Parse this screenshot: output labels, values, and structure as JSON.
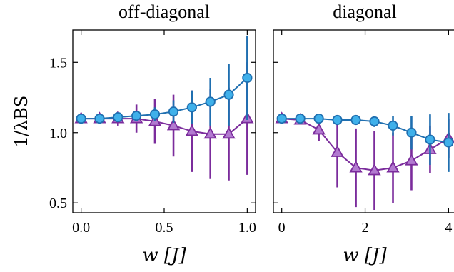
{
  "colors": {
    "series_circle_line": "#1f6fb0",
    "series_circle_fill": "#3fb0ea",
    "series_triangle_line": "#7b2c9c",
    "series_triangle_fill": "#b27ad0"
  },
  "ylabel": "1/λBS",
  "chart_data": [
    {
      "type": "line",
      "title": "off-diagonal",
      "xlabel": "w [J]",
      "ylabel": "1/λBS",
      "xlim": [
        -0.05,
        1.05
      ],
      "ylim": [
        0.43,
        1.73
      ],
      "xticks": [
        "0.0",
        "0.5",
        "1.0"
      ],
      "xtick_values": [
        0.0,
        0.5,
        1.0
      ],
      "yticks": [
        "0.5",
        "1.0",
        "1.5"
      ],
      "ytick_values": [
        0.5,
        1.0,
        1.5
      ],
      "series": [
        {
          "marker": "triangle",
          "x": [
            0.0,
            0.111,
            0.222,
            0.333,
            0.444,
            0.556,
            0.667,
            0.778,
            0.889,
            1.0
          ],
          "y": [
            1.1,
            1.1,
            1.1,
            1.1,
            1.08,
            1.05,
            1.01,
            0.99,
            0.99,
            1.1
          ],
          "err": [
            0.0,
            0.02,
            0.05,
            0.1,
            0.16,
            0.22,
            0.29,
            0.32,
            0.33,
            0.4
          ]
        },
        {
          "marker": "circle",
          "x": [
            0.0,
            0.111,
            0.222,
            0.333,
            0.444,
            0.556,
            0.667,
            0.778,
            0.889,
            1.0
          ],
          "y": [
            1.1,
            1.1,
            1.11,
            1.12,
            1.13,
            1.15,
            1.18,
            1.22,
            1.27,
            1.39
          ],
          "err": [
            0.0,
            0.01,
            0.02,
            0.03,
            0.05,
            0.08,
            0.12,
            0.17,
            0.22,
            0.3
          ]
        }
      ]
    },
    {
      "type": "line",
      "title": "diagonal",
      "xlabel": "w [J]",
      "ylabel": "",
      "xlim": [
        -0.2,
        4.25
      ],
      "ylim": [
        0.43,
        1.73
      ],
      "xticks": [
        "0",
        "2",
        "4"
      ],
      "xtick_values": [
        0,
        2,
        4
      ],
      "yticks": [],
      "ytick_values": [
        0.5,
        1.0,
        1.5
      ],
      "series": [
        {
          "marker": "triangle",
          "x": [
            0.0,
            0.444,
            0.889,
            1.333,
            1.778,
            2.222,
            2.667,
            3.111,
            3.556,
            4.0
          ],
          "y": [
            1.1,
            1.09,
            1.02,
            0.86,
            0.75,
            0.73,
            0.75,
            0.8,
            0.88,
            0.96
          ],
          "err": [
            0.0,
            0.02,
            0.08,
            0.25,
            0.28,
            0.28,
            0.25,
            0.21,
            0.17,
            0.14
          ]
        },
        {
          "marker": "circle",
          "x": [
            0.0,
            0.444,
            0.889,
            1.333,
            1.778,
            2.222,
            2.667,
            3.111,
            3.556,
            4.0
          ],
          "y": [
            1.1,
            1.1,
            1.1,
            1.09,
            1.09,
            1.08,
            1.05,
            1.0,
            0.95,
            0.93
          ],
          "err": [
            0.0,
            0.0,
            0.0,
            0.01,
            0.02,
            0.04,
            0.07,
            0.12,
            0.18,
            0.21
          ]
        }
      ]
    }
  ]
}
